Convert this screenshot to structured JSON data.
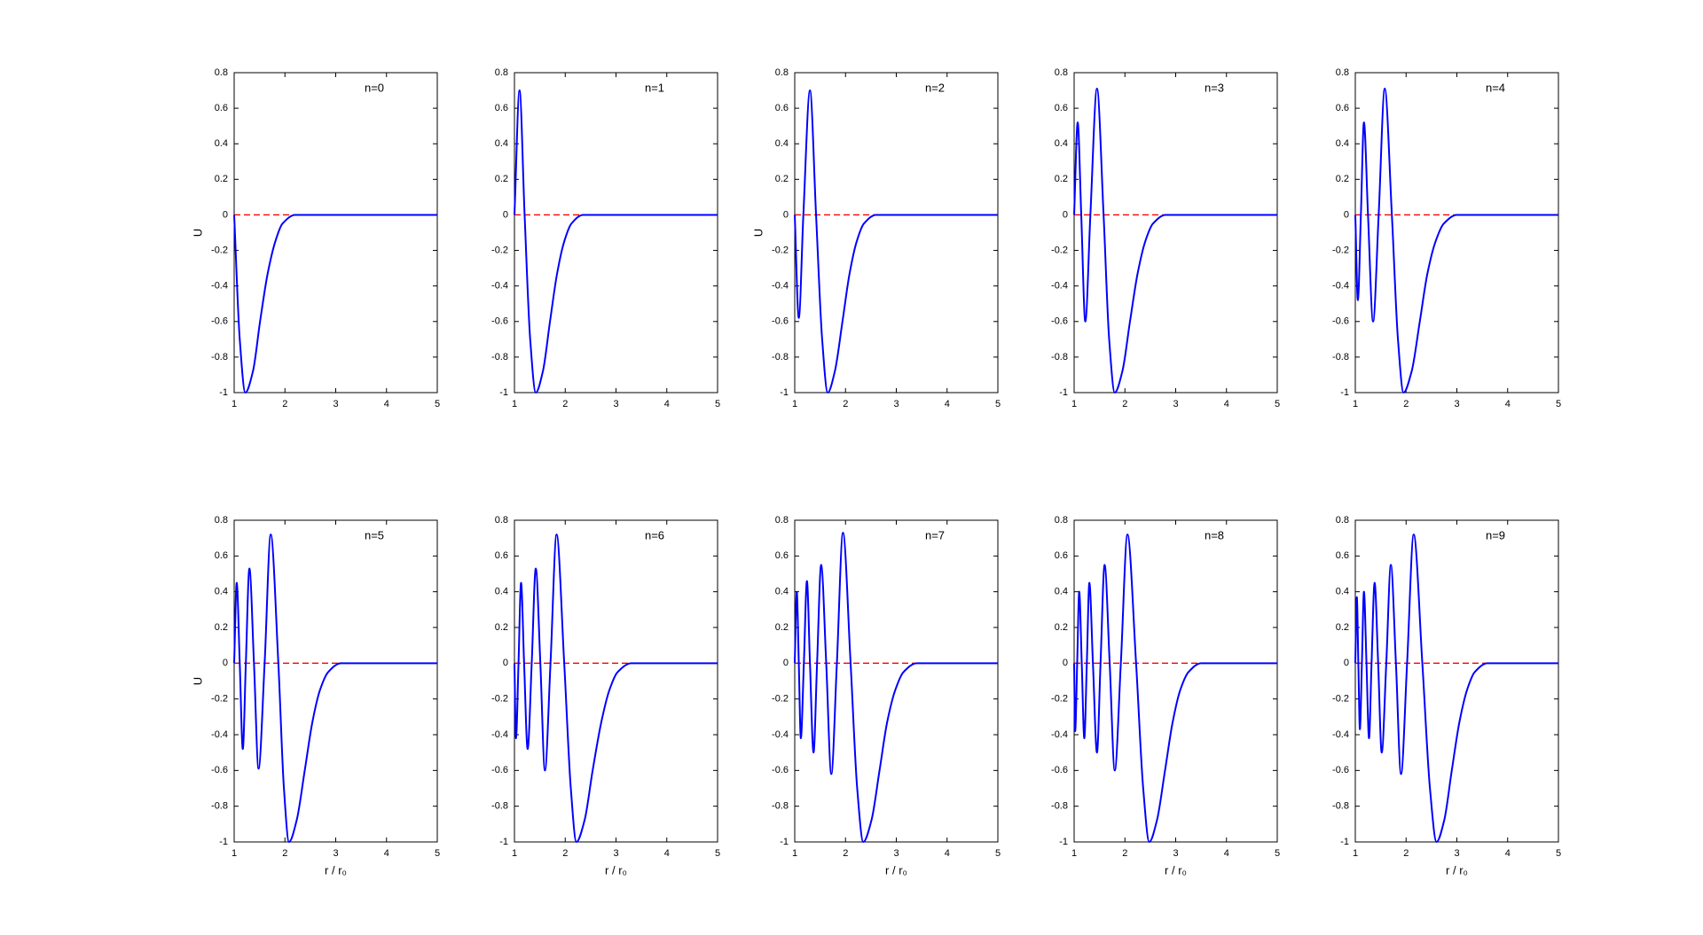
{
  "chart_data": [
    {
      "type": "line",
      "annotation": "n=0",
      "ylabel": "U",
      "x": [
        1,
        1.11,
        1.22,
        1.37,
        1.51,
        1.66,
        1.81,
        1.95,
        2.2,
        4,
        5
      ],
      "series": [
        {
          "color": "#0000ff",
          "values": [
            0,
            -0.7,
            -1,
            -0.88,
            -0.6,
            -0.33,
            -0.15,
            -0.05,
            0,
            0,
            0
          ]
        }
      ],
      "xlim": [
        1,
        5
      ],
      "ylim": [
        -1,
        0.8
      ],
      "xticks": [
        1,
        2,
        3,
        4,
        5
      ],
      "yticks": [
        -1,
        -0.8,
        -0.6,
        -0.4,
        -0.2,
        0,
        0.2,
        0.4,
        0.6,
        0.8
      ],
      "reference_line": {
        "y": 0,
        "color": "#ff0000",
        "dashed": true
      }
    },
    {
      "type": "line",
      "annotation": "n=1",
      "x": [
        1,
        1.1,
        1.2,
        1.31,
        1.42,
        1.56,
        1.7,
        1.84,
        1.98,
        2.12,
        2.35,
        4,
        5
      ],
      "series": [
        {
          "color": "#0000ff",
          "values": [
            0,
            0.7,
            0,
            -0.7,
            -1,
            -0.88,
            -0.6,
            -0.33,
            -0.15,
            -0.05,
            0,
            0,
            0
          ]
        }
      ],
      "xlim": [
        1,
        5
      ],
      "ylim": [
        -1,
        0.8
      ],
      "xticks": [
        1,
        2,
        3,
        4,
        5
      ],
      "yticks": [
        -1,
        -0.8,
        -0.6,
        -0.4,
        -0.2,
        0,
        0.2,
        0.4,
        0.6,
        0.8
      ],
      "reference_line": {
        "y": 0,
        "color": "#ff0000",
        "dashed": true
      }
    },
    {
      "type": "line",
      "annotation": "n=2",
      "ylabel": "U",
      "x": [
        1,
        1.08,
        1.17,
        1.3,
        1.42,
        1.54,
        1.65,
        1.79,
        1.94,
        2.08,
        2.22,
        2.36,
        2.6,
        4,
        5
      ],
      "series": [
        {
          "color": "#0000ff",
          "values": [
            0,
            -0.58,
            0,
            0.7,
            0,
            -0.7,
            -1,
            -0.88,
            -0.6,
            -0.33,
            -0.15,
            -0.05,
            0,
            0,
            0
          ]
        }
      ],
      "xlim": [
        1,
        5
      ],
      "ylim": [
        -1,
        0.8
      ],
      "xticks": [
        1,
        2,
        3,
        4,
        5
      ],
      "yticks": [
        -1,
        -0.8,
        -0.6,
        -0.4,
        -0.2,
        0,
        0.2,
        0.4,
        0.6,
        0.8
      ],
      "reference_line": {
        "y": 0,
        "color": "#ff0000",
        "dashed": true
      }
    },
    {
      "type": "line",
      "annotation": "n=3",
      "x": [
        1,
        1.07,
        1.14,
        1.22,
        1.32,
        1.45,
        1.58,
        1.69,
        1.8,
        1.95,
        2.1,
        2.25,
        2.4,
        2.55,
        2.8,
        4,
        5
      ],
      "series": [
        {
          "color": "#0000ff",
          "values": [
            0,
            0.52,
            0,
            -0.6,
            0,
            0.71,
            0,
            -0.7,
            -1,
            -0.88,
            -0.6,
            -0.33,
            -0.15,
            -0.05,
            0,
            0,
            0
          ]
        }
      ],
      "xlim": [
        1,
        5
      ],
      "ylim": [
        -1,
        0.8
      ],
      "xticks": [
        1,
        2,
        3,
        4,
        5
      ],
      "yticks": [
        -1,
        -0.8,
        -0.6,
        -0.4,
        -0.2,
        0,
        0.2,
        0.4,
        0.6,
        0.8
      ],
      "reference_line": {
        "y": 0,
        "color": "#ff0000",
        "dashed": true
      }
    },
    {
      "type": "line",
      "annotation": "n=4",
      "x": [
        1,
        1.05,
        1.11,
        1.17,
        1.25,
        1.35,
        1.46,
        1.58,
        1.72,
        1.84,
        1.95,
        2.11,
        2.27,
        2.42,
        2.58,
        2.74,
        3.0,
        4,
        5
      ],
      "series": [
        {
          "color": "#0000ff",
          "values": [
            0,
            -0.48,
            0,
            0.52,
            0,
            -0.6,
            0,
            0.71,
            0,
            -0.7,
            -1,
            -0.88,
            -0.6,
            -0.33,
            -0.15,
            -0.05,
            0,
            0,
            0
          ]
        }
      ],
      "xlim": [
        1,
        5
      ],
      "ylim": [
        -1,
        0.8
      ],
      "xticks": [
        1,
        2,
        3,
        4,
        5
      ],
      "yticks": [
        -1,
        -0.8,
        -0.6,
        -0.4,
        -0.2,
        0,
        0.2,
        0.4,
        0.6,
        0.8
      ],
      "reference_line": {
        "y": 0,
        "color": "#ff0000",
        "dashed": true
      }
    },
    {
      "type": "line",
      "annotation": "n=5",
      "ylabel": "U",
      "xlabel": "r / r₀",
      "x": [
        1,
        1.05,
        1.11,
        1.17,
        1.23,
        1.3,
        1.39,
        1.48,
        1.6,
        1.72,
        1.87,
        1.98,
        2.08,
        2.23,
        2.39,
        2.54,
        2.69,
        2.85,
        3.1,
        4,
        5
      ],
      "series": [
        {
          "color": "#0000ff",
          "values": [
            0,
            0.45,
            0,
            -0.48,
            0,
            0.53,
            0,
            -0.59,
            0,
            0.72,
            0,
            -0.7,
            -1,
            -0.88,
            -0.6,
            -0.33,
            -0.15,
            -0.05,
            0,
            0,
            0
          ]
        }
      ],
      "xlim": [
        1,
        5
      ],
      "ylim": [
        -1,
        0.8
      ],
      "xticks": [
        1,
        2,
        3,
        4,
        5
      ],
      "yticks": [
        -1,
        -0.8,
        -0.6,
        -0.4,
        -0.2,
        0,
        0.2,
        0.4,
        0.6,
        0.8
      ],
      "reference_line": {
        "y": 0,
        "color": "#ff0000",
        "dashed": true
      }
    },
    {
      "type": "line",
      "annotation": "n=6",
      "xlabel": "r / r₀",
      "x": [
        1,
        1.03,
        1.08,
        1.13,
        1.19,
        1.26,
        1.34,
        1.42,
        1.51,
        1.6,
        1.71,
        1.83,
        1.98,
        2.11,
        2.22,
        2.38,
        2.54,
        2.71,
        2.87,
        3.03,
        3.3,
        4,
        5
      ],
      "series": [
        {
          "color": "#0000ff",
          "values": [
            0,
            -0.42,
            0,
            0.45,
            0,
            -0.48,
            0,
            0.53,
            0,
            -0.6,
            0,
            0.72,
            0,
            -0.7,
            -1,
            -0.88,
            -0.6,
            -0.33,
            -0.15,
            -0.05,
            0,
            0,
            0
          ]
        }
      ],
      "xlim": [
        1,
        5
      ],
      "ylim": [
        -1,
        0.8
      ],
      "xticks": [
        1,
        2,
        3,
        4,
        5
      ],
      "yticks": [
        -1,
        -0.8,
        -0.6,
        -0.4,
        -0.2,
        0,
        0.2,
        0.4,
        0.6,
        0.8
      ],
      "reference_line": {
        "y": 0,
        "color": "#ff0000",
        "dashed": true
      }
    },
    {
      "type": "line",
      "annotation": "n=7",
      "xlabel": "r / r₀",
      "x": [
        1,
        1.04,
        1.08,
        1.12,
        1.18,
        1.24,
        1.3,
        1.37,
        1.44,
        1.52,
        1.62,
        1.72,
        1.83,
        1.95,
        2.1,
        2.23,
        2.35,
        2.51,
        2.67,
        2.82,
        2.98,
        3.14,
        3.4,
        4,
        5
      ],
      "series": [
        {
          "color": "#0000ff",
          "values": [
            0,
            0.4,
            0,
            -0.42,
            0,
            0.46,
            0,
            -0.5,
            0,
            0.55,
            0,
            -0.62,
            0,
            0.73,
            0,
            -0.7,
            -1,
            -0.88,
            -0.6,
            -0.33,
            -0.15,
            -0.05,
            0,
            0,
            0
          ]
        }
      ],
      "xlim": [
        1,
        5
      ],
      "ylim": [
        -1,
        0.8
      ],
      "xticks": [
        1,
        2,
        3,
        4,
        5
      ],
      "yticks": [
        -1,
        -0.8,
        -0.6,
        -0.4,
        -0.2,
        0,
        0.2,
        0.4,
        0.6,
        0.8
      ],
      "reference_line": {
        "y": 0,
        "color": "#ff0000",
        "dashed": true
      }
    },
    {
      "type": "line",
      "annotation": "n=8",
      "xlabel": "r / r₀",
      "x": [
        1,
        1.02,
        1.06,
        1.1,
        1.15,
        1.2,
        1.25,
        1.3,
        1.37,
        1.45,
        1.52,
        1.6,
        1.7,
        1.8,
        1.92,
        2.05,
        2.22,
        2.36,
        2.48,
        2.63,
        2.79,
        2.94,
        3.09,
        3.25,
        3.5,
        4,
        5
      ],
      "series": [
        {
          "color": "#0000ff",
          "values": [
            0,
            -0.38,
            0,
            0.4,
            0,
            -0.42,
            0,
            0.45,
            0,
            -0.5,
            0,
            0.55,
            0,
            -0.6,
            0,
            0.72,
            0,
            -0.7,
            -1,
            -0.88,
            -0.6,
            -0.33,
            -0.15,
            -0.05,
            0,
            0,
            0
          ]
        }
      ],
      "xlim": [
        1,
        5
      ],
      "ylim": [
        -1,
        0.8
      ],
      "xticks": [
        1,
        2,
        3,
        4,
        5
      ],
      "yticks": [
        -1,
        -0.8,
        -0.6,
        -0.4,
        -0.2,
        0,
        0.2,
        0.4,
        0.6,
        0.8
      ],
      "reference_line": {
        "y": 0,
        "color": "#ff0000",
        "dashed": true
      }
    },
    {
      "type": "line",
      "annotation": "n=9",
      "xlabel": "r / r₀",
      "x": [
        1,
        1.03,
        1.06,
        1.09,
        1.13,
        1.17,
        1.22,
        1.27,
        1.32,
        1.38,
        1.45,
        1.52,
        1.61,
        1.7,
        1.8,
        1.9,
        2.02,
        2.15,
        2.32,
        2.47,
        2.6,
        2.75,
        2.9,
        3.05,
        3.2,
        3.35,
        3.6,
        4,
        5
      ],
      "series": [
        {
          "color": "#0000ff",
          "values": [
            0,
            0.37,
            0,
            -0.37,
            0,
            0.4,
            0,
            -0.42,
            0,
            0.45,
            0,
            -0.5,
            0,
            0.55,
            0,
            -0.62,
            0,
            0.72,
            0,
            -0.7,
            -1,
            -0.88,
            -0.6,
            -0.33,
            -0.15,
            -0.05,
            0,
            0,
            0
          ]
        }
      ],
      "xlim": [
        1,
        5
      ],
      "ylim": [
        -1,
        0.8
      ],
      "xticks": [
        1,
        2,
        3,
        4,
        5
      ],
      "yticks": [
        -1,
        -0.8,
        -0.6,
        -0.4,
        -0.2,
        0,
        0.2,
        0.4,
        0.6,
        0.8
      ],
      "reference_line": {
        "y": 0,
        "color": "#ff0000",
        "dashed": true
      }
    }
  ]
}
